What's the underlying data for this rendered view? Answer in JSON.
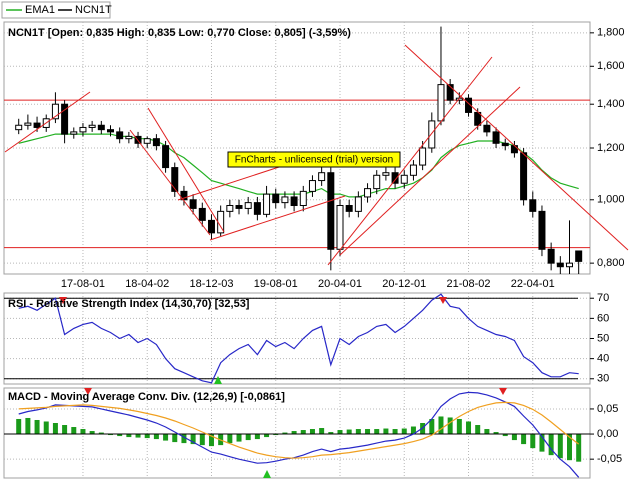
{
  "chart_data": [
    {
      "type": "candlestick",
      "name": "NCN1T",
      "header": "NCN1T [Open: 0,835  High: 0,835  Low: 0,770  Close: 0,805] (-3,59%)",
      "annotation": "FnCharts - unlicensed (trial) version",
      "color": "#000000",
      "categories": [
        null,
        null,
        null,
        null,
        null,
        null,
        null,
        "17-08-01",
        null,
        null,
        null,
        null,
        null,
        null,
        "18-04-02",
        null,
        null,
        null,
        null,
        null,
        null,
        "18-12-03",
        null,
        null,
        null,
        null,
        null,
        null,
        "19-08-01",
        null,
        null,
        null,
        null,
        null,
        null,
        "20-04-01",
        null,
        null,
        null,
        null,
        null,
        null,
        "20-12-01",
        null,
        null,
        null,
        null,
        null,
        null,
        "21-08-02",
        null,
        null,
        null,
        null,
        null,
        null,
        "22-04-01",
        null,
        null,
        null,
        null,
        null
      ],
      "open": [
        1.28,
        1.3,
        1.31,
        1.29,
        1.33,
        1.4,
        1.26,
        1.27,
        1.29,
        1.3,
        1.28,
        1.27,
        1.24,
        1.25,
        1.22,
        1.24,
        1.21,
        1.12,
        1.03,
        1.0,
        0.97,
        0.93,
        0.89,
        0.96,
        0.98,
        0.97,
        0.99,
        0.95,
        1.02,
        0.99,
        1.01,
        0.98,
        1.03,
        1.07,
        1.1,
        0.84,
        0.98,
        0.96,
        1.01,
        1.04,
        1.09,
        1.1,
        1.06,
        1.09,
        1.13,
        1.2,
        1.32,
        1.5,
        1.42,
        1.43,
        1.36,
        1.3,
        1.27,
        1.22,
        1.21,
        1.18,
        1.0,
        0.96,
        0.84,
        0.8,
        0.79,
        0.835
      ],
      "high": [
        1.33,
        1.35,
        1.34,
        1.35,
        1.46,
        1.42,
        1.29,
        1.31,
        1.32,
        1.32,
        1.3,
        1.29,
        1.27,
        1.27,
        1.25,
        1.26,
        1.23,
        1.14,
        1.05,
        1.02,
        0.99,
        0.95,
        0.98,
        1.0,
        1.0,
        1.01,
        1.01,
        1.05,
        1.04,
        1.03,
        1.03,
        1.05,
        1.09,
        1.13,
        1.12,
        1.0,
        1.0,
        1.03,
        1.06,
        1.11,
        1.12,
        1.12,
        1.11,
        1.15,
        1.23,
        1.36,
        1.84,
        1.53,
        1.46,
        1.45,
        1.38,
        1.32,
        1.29,
        1.24,
        1.23,
        1.2,
        1.03,
        0.98,
        0.86,
        0.82,
        0.93,
        0.835
      ],
      "low": [
        1.26,
        1.28,
        1.27,
        1.27,
        1.31,
        1.22,
        1.24,
        1.25,
        1.27,
        1.26,
        1.25,
        1.22,
        1.22,
        1.2,
        1.2,
        1.19,
        1.1,
        1.01,
        0.98,
        0.95,
        0.91,
        0.87,
        0.88,
        0.94,
        0.95,
        0.95,
        0.93,
        0.94,
        0.97,
        0.97,
        0.96,
        0.96,
        1.01,
        1.05,
        0.78,
        0.82,
        0.94,
        0.94,
        0.99,
        1.02,
        1.07,
        1.04,
        1.04,
        1.07,
        1.11,
        1.18,
        1.3,
        1.4,
        1.4,
        1.34,
        1.28,
        1.25,
        1.2,
        1.19,
        1.16,
        0.98,
        0.94,
        0.82,
        0.78,
        0.77,
        0.77,
        0.77
      ],
      "close": [
        1.3,
        1.31,
        1.29,
        1.33,
        1.4,
        1.26,
        1.27,
        1.29,
        1.3,
        1.28,
        1.27,
        1.24,
        1.25,
        1.22,
        1.24,
        1.21,
        1.12,
        1.03,
        1.0,
        0.97,
        0.93,
        0.89,
        0.96,
        0.98,
        0.97,
        0.99,
        0.95,
        1.02,
        0.99,
        1.01,
        0.98,
        1.03,
        1.07,
        1.1,
        0.84,
        0.98,
        0.96,
        1.01,
        1.04,
        1.09,
        1.1,
        1.06,
        1.09,
        1.13,
        1.2,
        1.32,
        1.5,
        1.42,
        1.43,
        1.36,
        1.3,
        1.27,
        1.22,
        1.21,
        1.18,
        1.0,
        0.96,
        0.84,
        0.8,
        0.79,
        0.8,
        0.805
      ],
      "series": [
        {
          "name": "EMA1",
          "color": "#22b022",
          "values": [
            1.22,
            1.23,
            1.24,
            1.25,
            1.26,
            1.26,
            1.26,
            1.26,
            1.26,
            1.26,
            1.26,
            1.25,
            1.25,
            1.24,
            1.24,
            1.23,
            1.21,
            1.18,
            1.16,
            1.13,
            1.1,
            1.07,
            1.06,
            1.05,
            1.04,
            1.03,
            1.02,
            1.02,
            1.02,
            1.02,
            1.02,
            1.02,
            1.03,
            1.04,
            1.02,
            1.02,
            1.01,
            1.01,
            1.02,
            1.03,
            1.04,
            1.04,
            1.05,
            1.06,
            1.08,
            1.11,
            1.16,
            1.19,
            1.21,
            1.22,
            1.23,
            1.23,
            1.23,
            1.22,
            1.21,
            1.18,
            1.15,
            1.11,
            1.08,
            1.06,
            1.05,
            1.04
          ]
        }
      ],
      "hlines": [
        1.42,
        0.845
      ],
      "hline_color": "#e02020",
      "log_scale": true,
      "grid": true,
      "ylim": [
        0.77,
        1.87
      ],
      "yticks": [
        {
          "value": 0.8,
          "label": "0,800"
        },
        {
          "value": 1.0,
          "label": "1,000"
        },
        {
          "value": 1.2,
          "label": "1,200"
        },
        {
          "value": 1.4,
          "label": "1,400"
        },
        {
          "value": 1.6,
          "label": "1,600"
        },
        {
          "value": 1.8,
          "label": "1,800"
        }
      ]
    },
    {
      "type": "line",
      "title": "RSI - Relative Strength Index (14,30,70) [32,53]",
      "series": [
        {
          "color": "#2828c8",
          "values": [
            65,
            66,
            64,
            67,
            70,
            52,
            55,
            57,
            58,
            55,
            53,
            50,
            52,
            48,
            50,
            47,
            40,
            35,
            33,
            31,
            29,
            28,
            38,
            42,
            45,
            47,
            42,
            49,
            46,
            48,
            45,
            50,
            54,
            56,
            37,
            50,
            47,
            51,
            53,
            56,
            57,
            53,
            56,
            60,
            64,
            69,
            72,
            66,
            65,
            60,
            56,
            54,
            52,
            51,
            49,
            41,
            38,
            33,
            31,
            31,
            33,
            32.53
          ]
        }
      ],
      "levels": [
        30,
        70
      ],
      "grid": true,
      "ylim": [
        27.4,
        72.6
      ],
      "yticks": [
        30,
        40,
        50,
        60,
        70
      ]
    },
    {
      "type": "line",
      "title": "MACD - Moving Average Conv. Div. (12,26,9) [-0,0861]",
      "series": [
        {
          "type": "bar",
          "color": "#1a9a1a",
          "values": [
            0.03,
            0.032,
            0.028,
            0.025,
            0.022,
            0.018,
            0.014,
            0.01,
            0.006,
            0.003,
            -0.002,
            -0.004,
            -0.006,
            -0.007,
            -0.008,
            -0.01,
            -0.013,
            -0.016,
            -0.018,
            -0.02,
            -0.022,
            -0.024,
            -0.022,
            -0.018,
            -0.015,
            -0.012,
            -0.01,
            -0.006,
            -0.002,
            0.003,
            0.006,
            0.008,
            0.01,
            0.012,
            0.004,
            0.008,
            0.009,
            0.01,
            0.01,
            0.01,
            0.011,
            0.01,
            0.011,
            0.015,
            0.022,
            0.03,
            0.035,
            0.033,
            0.03,
            0.025,
            0.018,
            0.01,
            0.004,
            -0.004,
            -0.012,
            -0.02,
            -0.028,
            -0.035,
            -0.042,
            -0.048,
            -0.052,
            -0.055
          ]
        },
        {
          "color": "#2828c8",
          "values": [
            0.04,
            0.045,
            0.048,
            0.052,
            0.058,
            0.057,
            0.056,
            0.055,
            0.054,
            0.05,
            0.046,
            0.042,
            0.038,
            0.033,
            0.028,
            0.022,
            0.014,
            0.004,
            -0.006,
            -0.016,
            -0.026,
            -0.036,
            -0.04,
            -0.045,
            -0.05,
            -0.054,
            -0.058,
            -0.057,
            -0.054,
            -0.05,
            -0.047,
            -0.042,
            -0.035,
            -0.03,
            -0.035,
            -0.03,
            -0.028,
            -0.025,
            -0.022,
            -0.018,
            -0.014,
            -0.012,
            -0.008,
            0.0,
            0.012,
            0.03,
            0.055,
            0.07,
            0.08,
            0.083,
            0.082,
            0.078,
            0.072,
            0.064,
            0.055,
            0.036,
            0.018,
            -0.005,
            -0.03,
            -0.05,
            -0.065,
            -0.0861
          ]
        },
        {
          "color": "#f0a020",
          "values": [
            0.05,
            0.051,
            0.052,
            0.053,
            0.055,
            0.056,
            0.057,
            0.058,
            0.057,
            0.055,
            0.053,
            0.051,
            0.048,
            0.045,
            0.041,
            0.037,
            0.032,
            0.026,
            0.019,
            0.012,
            0.004,
            -0.004,
            -0.012,
            -0.019,
            -0.026,
            -0.032,
            -0.038,
            -0.042,
            -0.045,
            -0.047,
            -0.048,
            -0.047,
            -0.045,
            -0.042,
            -0.041,
            -0.039,
            -0.037,
            -0.034,
            -0.031,
            -0.028,
            -0.025,
            -0.022,
            -0.019,
            -0.015,
            -0.01,
            -0.002,
            0.01,
            0.023,
            0.035,
            0.045,
            0.053,
            0.058,
            0.062,
            0.063,
            0.062,
            0.057,
            0.049,
            0.038,
            0.024,
            0.009,
            -0.006,
            -0.02
          ]
        }
      ],
      "grid": true,
      "ylim": [
        -0.0875,
        0.0917
      ],
      "yticks": [
        {
          "value": -0.05,
          "label": "-0,05"
        },
        {
          "value": 0,
          "label": "0,00"
        },
        {
          "value": 0.05,
          "label": "0,05"
        }
      ]
    }
  ]
}
